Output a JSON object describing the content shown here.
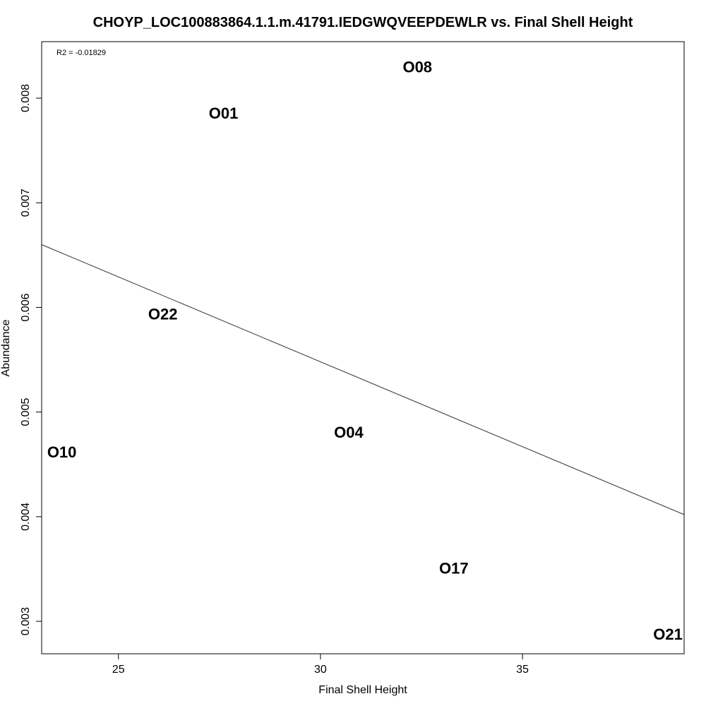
{
  "chart_data": {
    "type": "scatter",
    "title": "CHOYP_LOC100883864.1.1.m.41791.IEDGWQVEEPDEWLR vs. Final Shell Height",
    "xlabel": "Final Shell Height",
    "ylabel": "Abundance",
    "annotation": "R2 = -0.01829",
    "xlim": [
      23.1,
      39.0
    ],
    "ylim": [
      0.00269,
      0.00854
    ],
    "xticks": [
      25,
      30,
      35
    ],
    "xtick_labels": [
      "25",
      "30",
      "35"
    ],
    "yticks": [
      0.003,
      0.004,
      0.005,
      0.006,
      0.007,
      0.008
    ],
    "ytick_labels": [
      "0.003",
      "0.004",
      "0.005",
      "0.006",
      "0.007",
      "0.008"
    ],
    "grid": false,
    "points": [
      {
        "label": "O08",
        "x": 32.4,
        "y": 0.0083
      },
      {
        "label": "O01",
        "x": 27.6,
        "y": 0.00786
      },
      {
        "label": "O22",
        "x": 26.1,
        "y": 0.00594
      },
      {
        "label": "O04",
        "x": 30.7,
        "y": 0.00481
      },
      {
        "label": "O10",
        "x": 23.6,
        "y": 0.00462
      },
      {
        "label": "O17",
        "x": 33.3,
        "y": 0.00351
      },
      {
        "label": "O21",
        "x": 38.6,
        "y": 0.00288
      }
    ],
    "fit_line": {
      "x": [
        23.1,
        39.0
      ],
      "y": [
        0.0066,
        0.00402
      ]
    }
  }
}
